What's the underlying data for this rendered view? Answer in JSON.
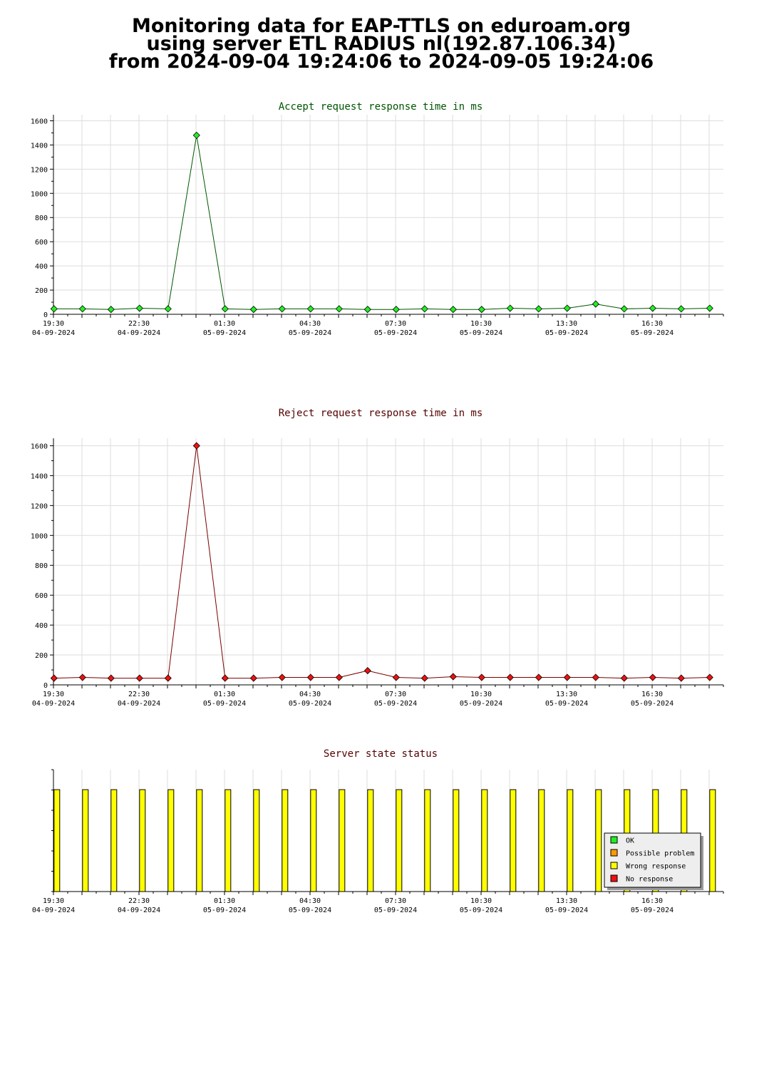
{
  "header": {
    "line1": "Monitoring data for EAP-TTLS on eduroam.org",
    "line2": "using server ETL RADIUS nl(192.87.106.34)",
    "line3": "from 2024-09-04 19:24:06 to 2024-09-05 19:24:06"
  },
  "colors": {
    "accept_line": "#005500",
    "accept_marker": "#22ee22",
    "reject_line": "#770000",
    "reject_marker": "#ee1111",
    "status_bar": "#ffff00",
    "grid": "#dddddd"
  },
  "chart_data": [
    {
      "type": "line",
      "title": "Accept request response time in ms",
      "title_color": "#005500",
      "ylim": [
        0,
        1650
      ],
      "yticks": [
        0,
        200,
        400,
        600,
        800,
        1000,
        1200,
        1400,
        1600
      ],
      "xlim": [
        0,
        23.5
      ],
      "xticks": [
        {
          "x": 0,
          "time": "19:30",
          "date": "04-09-2024"
        },
        {
          "x": 3,
          "time": "22:30",
          "date": "04-09-2024"
        },
        {
          "x": 6,
          "time": "01:30",
          "date": "05-09-2024"
        },
        {
          "x": 9,
          "time": "04:30",
          "date": "05-09-2024"
        },
        {
          "x": 12,
          "time": "07:30",
          "date": "05-09-2024"
        },
        {
          "x": 15,
          "time": "10:30",
          "date": "05-09-2024"
        },
        {
          "x": 18,
          "time": "13:30",
          "date": "05-09-2024"
        },
        {
          "x": 21,
          "time": "16:30",
          "date": "05-09-2024"
        }
      ],
      "series": [
        {
          "values": [
            45,
            45,
            40,
            50,
            45,
            1480,
            45,
            40,
            45,
            45,
            45,
            40,
            40,
            45,
            40,
            40,
            50,
            45,
            50,
            85,
            45,
            50,
            45,
            50
          ]
        }
      ]
    },
    {
      "type": "line",
      "title": "Reject request response time in ms",
      "title_color": "#550000",
      "ylim": [
        0,
        1650
      ],
      "yticks": [
        0,
        200,
        400,
        600,
        800,
        1000,
        1200,
        1400,
        1600
      ],
      "xlim": [
        0,
        23.5
      ],
      "xticks": [
        {
          "x": 0,
          "time": "19:30",
          "date": "04-09-2024"
        },
        {
          "x": 3,
          "time": "22:30",
          "date": "04-09-2024"
        },
        {
          "x": 6,
          "time": "01:30",
          "date": "05-09-2024"
        },
        {
          "x": 9,
          "time": "04:30",
          "date": "05-09-2024"
        },
        {
          "x": 12,
          "time": "07:30",
          "date": "05-09-2024"
        },
        {
          "x": 15,
          "time": "10:30",
          "date": "05-09-2024"
        },
        {
          "x": 18,
          "time": "13:30",
          "date": "05-09-2024"
        },
        {
          "x": 21,
          "time": "16:30",
          "date": "05-09-2024"
        }
      ],
      "series": [
        {
          "values": [
            45,
            50,
            45,
            45,
            45,
            1600,
            45,
            45,
            50,
            50,
            50,
            95,
            50,
            45,
            55,
            50,
            50,
            50,
            50,
            50,
            45,
            50,
            45,
            50
          ]
        }
      ]
    },
    {
      "type": "bar",
      "title": "Server state status",
      "title_color": "#550000",
      "xlim": [
        0,
        23.5
      ],
      "xticks": [
        {
          "x": 0,
          "time": "19:30",
          "date": "04-09-2024"
        },
        {
          "x": 3,
          "time": "22:30",
          "date": "04-09-2024"
        },
        {
          "x": 6,
          "time": "01:30",
          "date": "05-09-2024"
        },
        {
          "x": 9,
          "time": "04:30",
          "date": "05-09-2024"
        },
        {
          "x": 12,
          "time": "07:30",
          "date": "05-09-2024"
        },
        {
          "x": 15,
          "time": "10:30",
          "date": "05-09-2024"
        },
        {
          "x": 18,
          "time": "13:30",
          "date": "05-09-2024"
        },
        {
          "x": 21,
          "time": "16:30",
          "date": "05-09-2024"
        }
      ],
      "states": [
        "Wrong response",
        "Wrong response",
        "Wrong response",
        "Wrong response",
        "Wrong response",
        "Wrong response",
        "Wrong response",
        "Wrong response",
        "Wrong response",
        "Wrong response",
        "Wrong response",
        "Wrong response",
        "Wrong response",
        "Wrong response",
        "Wrong response",
        "Wrong response",
        "Wrong response",
        "Wrong response",
        "Wrong response",
        "Wrong response",
        "Wrong response",
        "Wrong response",
        "Wrong response",
        "Wrong response"
      ],
      "legend": [
        {
          "label": "OK",
          "color": "#22ee22"
        },
        {
          "label": "Possible problem",
          "color": "#ff9900"
        },
        {
          "label": "Wrong response",
          "color": "#ffff00"
        },
        {
          "label": "No response",
          "color": "#ee1111"
        }
      ],
      "legend_position": "bottom-right"
    }
  ]
}
